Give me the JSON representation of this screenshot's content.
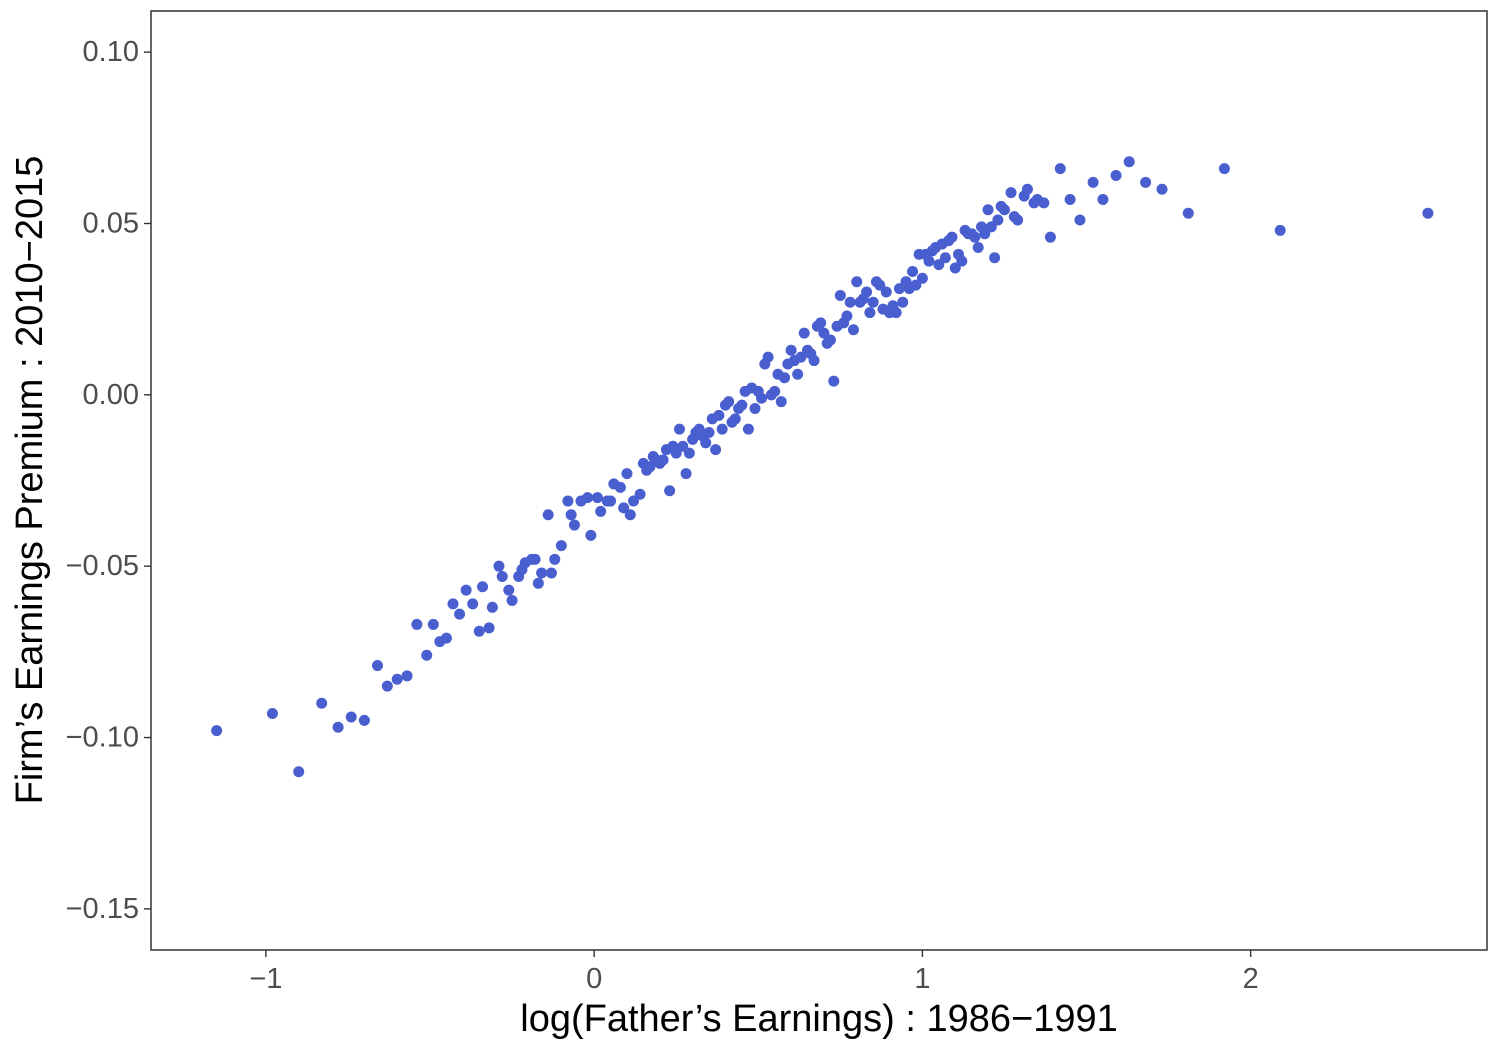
{
  "chart_data": {
    "type": "scatter",
    "title": "",
    "xlabel": "log(Father’s Earnings) : 1986−1991",
    "ylabel": "Firm’s Earnings Premium : 2010−2015",
    "xlim": [
      -1.35,
      2.72
    ],
    "ylim": [
      -0.162,
      0.112
    ],
    "xticks": [
      -1,
      0,
      1,
      2
    ],
    "xtick_labels": [
      "−1",
      "0",
      "1",
      "2"
    ],
    "yticks": [
      -0.15,
      -0.1,
      -0.05,
      0.0,
      0.05,
      0.1
    ],
    "ytick_labels": [
      "−0.15",
      "−0.10",
      "−0.05",
      "0.00",
      "0.05",
      "0.10"
    ],
    "grid": false,
    "legend": "none",
    "marker_color": "#4a5fcf",
    "series": [
      {
        "points": [
          [
            -1.15,
            -0.098
          ],
          [
            -0.98,
            -0.093
          ],
          [
            -0.9,
            -0.11
          ],
          [
            -0.83,
            -0.09
          ],
          [
            -0.78,
            -0.097
          ],
          [
            -0.74,
            -0.094
          ],
          [
            -0.7,
            -0.095
          ],
          [
            -0.66,
            -0.079
          ],
          [
            -0.63,
            -0.085
          ],
          [
            -0.6,
            -0.083
          ],
          [
            -0.57,
            -0.082
          ],
          [
            -0.54,
            -0.067
          ],
          [
            -0.51,
            -0.076
          ],
          [
            -0.49,
            -0.067
          ],
          [
            -0.47,
            -0.072
          ],
          [
            -0.45,
            -0.071
          ],
          [
            -0.43,
            -0.061
          ],
          [
            -0.41,
            -0.064
          ],
          [
            -0.39,
            -0.057
          ],
          [
            -0.37,
            -0.061
          ],
          [
            -0.35,
            -0.069
          ],
          [
            -0.34,
            -0.056
          ],
          [
            -0.32,
            -0.068
          ],
          [
            -0.31,
            -0.062
          ],
          [
            -0.29,
            -0.05
          ],
          [
            -0.28,
            -0.053
          ],
          [
            -0.26,
            -0.057
          ],
          [
            -0.25,
            -0.06
          ],
          [
            -0.23,
            -0.053
          ],
          [
            -0.22,
            -0.051
          ],
          [
            -0.21,
            -0.049
          ],
          [
            -0.19,
            -0.048
          ],
          [
            -0.18,
            -0.048
          ],
          [
            -0.17,
            -0.055
          ],
          [
            -0.16,
            -0.052
          ],
          [
            -0.14,
            -0.035
          ],
          [
            -0.13,
            -0.052
          ],
          [
            -0.12,
            -0.048
          ],
          [
            -0.1,
            -0.044
          ],
          [
            -0.08,
            -0.031
          ],
          [
            -0.07,
            -0.035
          ],
          [
            -0.06,
            -0.038
          ],
          [
            -0.04,
            -0.031
          ],
          [
            -0.02,
            -0.03
          ],
          [
            -0.01,
            -0.041
          ],
          [
            0.01,
            -0.03
          ],
          [
            0.02,
            -0.034
          ],
          [
            0.04,
            -0.031
          ],
          [
            0.05,
            -0.031
          ],
          [
            0.06,
            -0.026
          ],
          [
            0.08,
            -0.027
          ],
          [
            0.09,
            -0.033
          ],
          [
            0.1,
            -0.023
          ],
          [
            0.11,
            -0.035
          ],
          [
            0.12,
            -0.031
          ],
          [
            0.14,
            -0.029
          ],
          [
            0.15,
            -0.02
          ],
          [
            0.16,
            -0.022
          ],
          [
            0.17,
            -0.021
          ],
          [
            0.18,
            -0.018
          ],
          [
            0.19,
            -0.019
          ],
          [
            0.2,
            -0.02
          ],
          [
            0.21,
            -0.019
          ],
          [
            0.22,
            -0.016
          ],
          [
            0.23,
            -0.028
          ],
          [
            0.24,
            -0.015
          ],
          [
            0.25,
            -0.017
          ],
          [
            0.26,
            -0.01
          ],
          [
            0.27,
            -0.015
          ],
          [
            0.28,
            -0.023
          ],
          [
            0.29,
            -0.017
          ],
          [
            0.3,
            -0.013
          ],
          [
            0.31,
            -0.011
          ],
          [
            0.32,
            -0.01
          ],
          [
            0.33,
            -0.012
          ],
          [
            0.34,
            -0.014
          ],
          [
            0.35,
            -0.011
          ],
          [
            0.36,
            -0.007
          ],
          [
            0.37,
            -0.016
          ],
          [
            0.38,
            -0.006
          ],
          [
            0.39,
            -0.01
          ],
          [
            0.4,
            -0.003
          ],
          [
            0.41,
            -0.002
          ],
          [
            0.42,
            -0.008
          ],
          [
            0.43,
            -0.007
          ],
          [
            0.44,
            -0.004
          ],
          [
            0.45,
            -0.003
          ],
          [
            0.46,
            0.001
          ],
          [
            0.47,
            -0.01
          ],
          [
            0.48,
            0.002
          ],
          [
            0.49,
            -0.004
          ],
          [
            0.5,
            0.001
          ],
          [
            0.51,
            -0.001
          ],
          [
            0.52,
            0.009
          ],
          [
            0.53,
            0.011
          ],
          [
            0.54,
            0.0
          ],
          [
            0.55,
            0.001
          ],
          [
            0.56,
            0.006
          ],
          [
            0.57,
            -0.002
          ],
          [
            0.58,
            0.005
          ],
          [
            0.59,
            0.009
          ],
          [
            0.6,
            0.013
          ],
          [
            0.61,
            0.01
          ],
          [
            0.62,
            0.006
          ],
          [
            0.63,
            0.011
          ],
          [
            0.64,
            0.018
          ],
          [
            0.65,
            0.013
          ],
          [
            0.66,
            0.012
          ],
          [
            0.67,
            0.01
          ],
          [
            0.68,
            0.02
          ],
          [
            0.69,
            0.021
          ],
          [
            0.7,
            0.018
          ],
          [
            0.71,
            0.015
          ],
          [
            0.72,
            0.016
          ],
          [
            0.73,
            0.004
          ],
          [
            0.74,
            0.02
          ],
          [
            0.75,
            0.029
          ],
          [
            0.76,
            0.021
          ],
          [
            0.77,
            0.023
          ],
          [
            0.78,
            0.027
          ],
          [
            0.79,
            0.019
          ],
          [
            0.8,
            0.033
          ],
          [
            0.81,
            0.027
          ],
          [
            0.82,
            0.028
          ],
          [
            0.83,
            0.03
          ],
          [
            0.84,
            0.024
          ],
          [
            0.85,
            0.027
          ],
          [
            0.86,
            0.033
          ],
          [
            0.87,
            0.032
          ],
          [
            0.88,
            0.025
          ],
          [
            0.89,
            0.03
          ],
          [
            0.9,
            0.024
          ],
          [
            0.91,
            0.026
          ],
          [
            0.92,
            0.024
          ],
          [
            0.93,
            0.031
          ],
          [
            0.94,
            0.027
          ],
          [
            0.95,
            0.033
          ],
          [
            0.96,
            0.031
          ],
          [
            0.97,
            0.036
          ],
          [
            0.98,
            0.032
          ],
          [
            0.99,
            0.041
          ],
          [
            1.0,
            0.034
          ],
          [
            1.01,
            0.041
          ],
          [
            1.02,
            0.039
          ],
          [
            1.03,
            0.042
          ],
          [
            1.04,
            0.043
          ],
          [
            1.05,
            0.038
          ],
          [
            1.06,
            0.044
          ],
          [
            1.07,
            0.04
          ],
          [
            1.08,
            0.045
          ],
          [
            1.09,
            0.046
          ],
          [
            1.1,
            0.037
          ],
          [
            1.11,
            0.041
          ],
          [
            1.12,
            0.039
          ],
          [
            1.13,
            0.048
          ],
          [
            1.14,
            0.047
          ],
          [
            1.15,
            0.047
          ],
          [
            1.16,
            0.046
          ],
          [
            1.17,
            0.043
          ],
          [
            1.18,
            0.049
          ],
          [
            1.19,
            0.047
          ],
          [
            1.2,
            0.054
          ],
          [
            1.21,
            0.049
          ],
          [
            1.22,
            0.04
          ],
          [
            1.23,
            0.051
          ],
          [
            1.24,
            0.055
          ],
          [
            1.25,
            0.054
          ],
          [
            1.27,
            0.059
          ],
          [
            1.28,
            0.052
          ],
          [
            1.29,
            0.051
          ],
          [
            1.31,
            0.058
          ],
          [
            1.32,
            0.06
          ],
          [
            1.34,
            0.056
          ],
          [
            1.35,
            0.057
          ],
          [
            1.37,
            0.056
          ],
          [
            1.39,
            0.046
          ],
          [
            1.42,
            0.066
          ],
          [
            1.45,
            0.057
          ],
          [
            1.48,
            0.051
          ],
          [
            1.52,
            0.062
          ],
          [
            1.55,
            0.057
          ],
          [
            1.59,
            0.064
          ],
          [
            1.63,
            0.068
          ],
          [
            1.68,
            0.062
          ],
          [
            1.73,
            0.06
          ],
          [
            1.81,
            0.053
          ],
          [
            1.92,
            0.066
          ],
          [
            2.09,
            0.048
          ],
          [
            2.54,
            0.053
          ]
        ]
      }
    ]
  }
}
